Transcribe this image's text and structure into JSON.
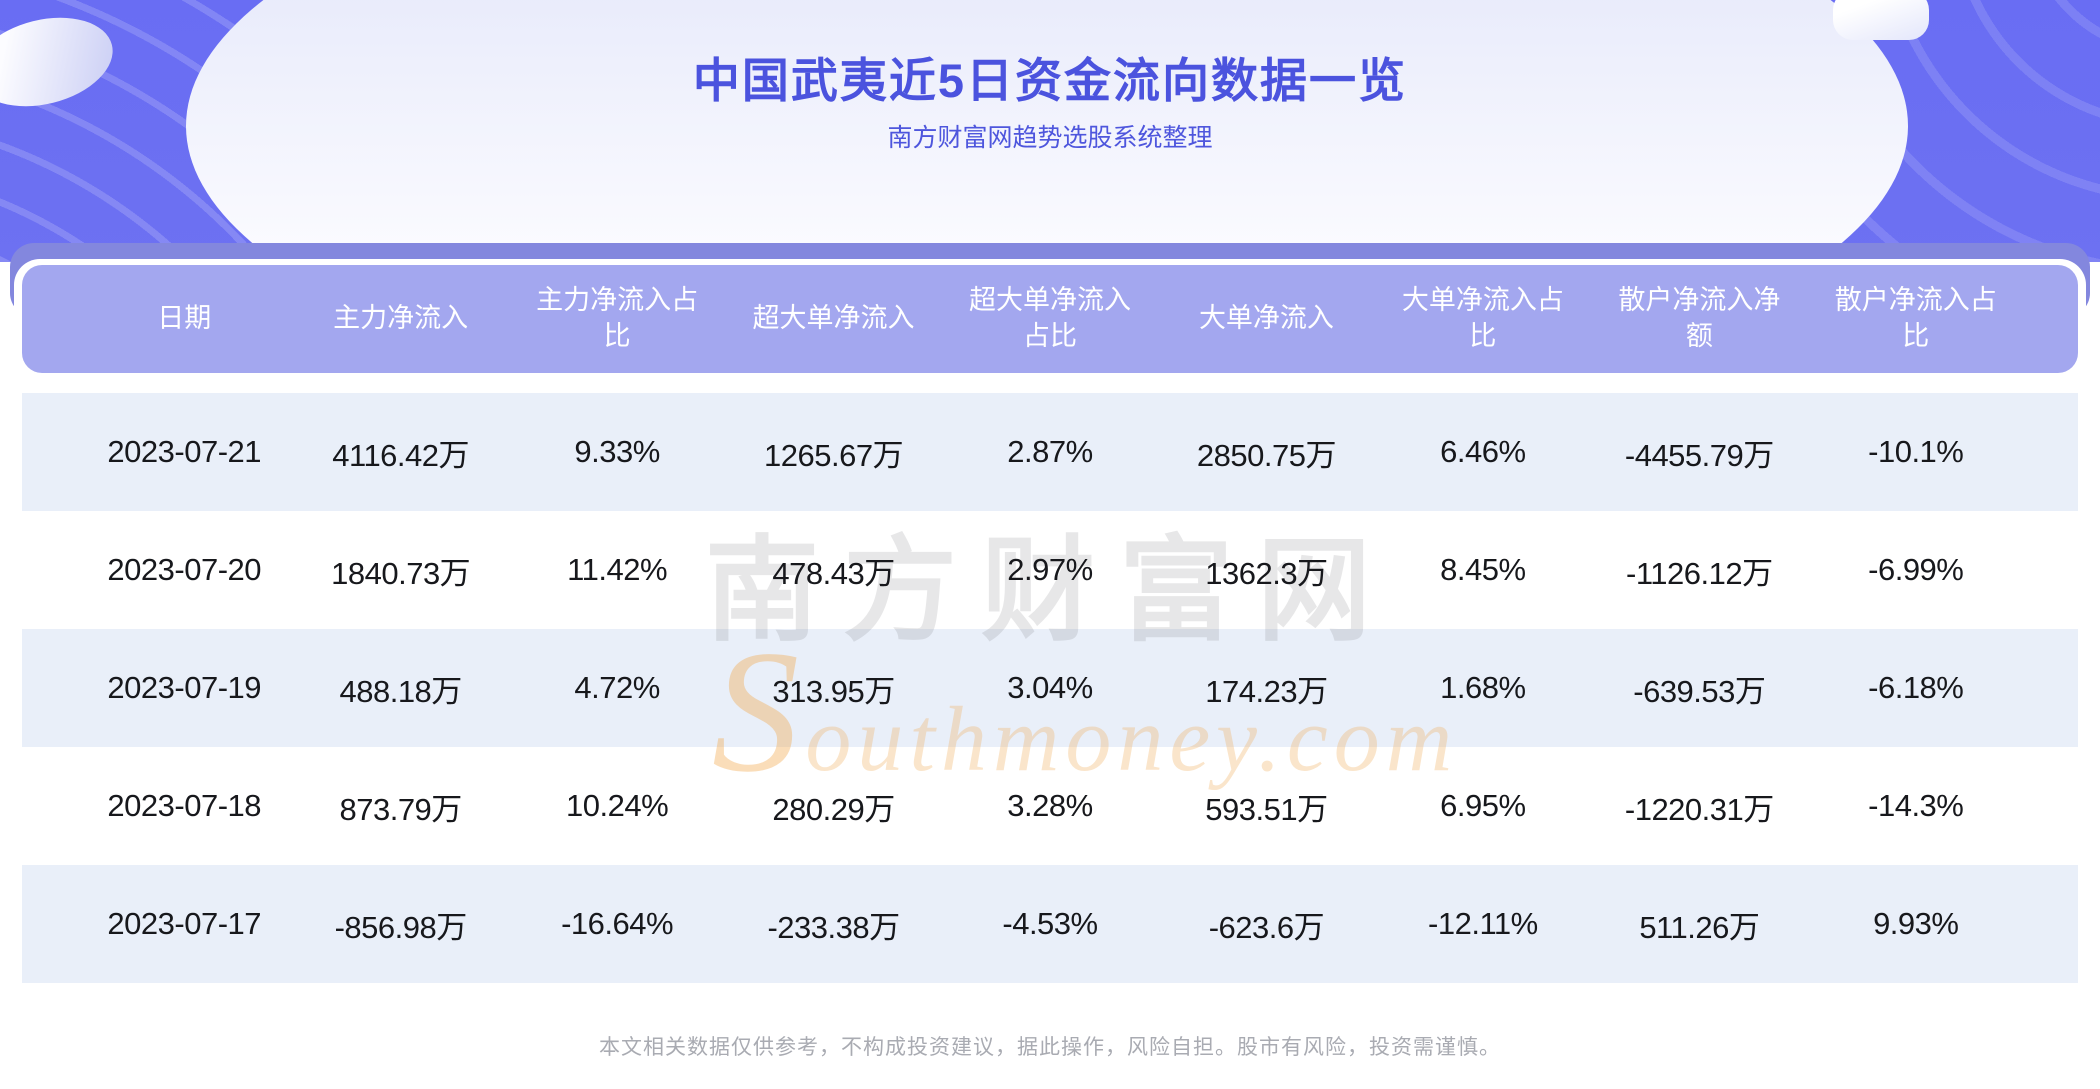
{
  "page": {
    "title": "中国武夷近5日资金流向数据一览",
    "subtitle": "南方财富网趋势选股系统整理",
    "disclaimer": "本文相关数据仅供参考，不构成投资建议，据此操作，风险自担。股市有风险，投资需谨慎。"
  },
  "watermark": {
    "cn": "南方财富网",
    "en": "Southmoney.com"
  },
  "chart_data": {
    "type": "table",
    "title": "中国武夷近5日资金流向数据一览",
    "subtitle": "南方财富网趋势选股系统整理",
    "columns": [
      "日期",
      "主力净流入",
      "主力净流入占比",
      "超大单净流入",
      "超大单净流入占比",
      "大单净流入",
      "大单净流入占比",
      "散户净流入净额",
      "散户净流入占比"
    ],
    "rows": [
      [
        "2023-07-21",
        "4116.42万",
        "9.33%",
        "1265.67万",
        "2.87%",
        "2850.75万",
        "6.46%",
        "-4455.79万",
        "-10.1%"
      ],
      [
        "2023-07-20",
        "1840.73万",
        "11.42%",
        "478.43万",
        "2.97%",
        "1362.3万",
        "8.45%",
        "-1126.12万",
        "-6.99%"
      ],
      [
        "2023-07-19",
        "488.18万",
        "4.72%",
        "313.95万",
        "3.04%",
        "174.23万",
        "1.68%",
        "-639.53万",
        "-6.18%"
      ],
      [
        "2023-07-18",
        "873.79万",
        "10.24%",
        "280.29万",
        "3.28%",
        "593.51万",
        "6.95%",
        "-1220.31万",
        "-14.3%"
      ],
      [
        "2023-07-17",
        "-856.98万",
        "-16.64%",
        "-233.38万",
        "-4.53%",
        "-623.6万",
        "-12.11%",
        "511.26万",
        "9.93%"
      ]
    ]
  },
  "colors": {
    "banner_purple": "#696df3",
    "title_indigo": "#4b53de",
    "strip_purple": "#8387de",
    "table_header_bg": "#a3a7ef",
    "row_alt_bg": "#e9eff9",
    "watermark_orange": "#f0ae5e",
    "text_dark": "#17181c",
    "footer_gray": "#a9abb2"
  }
}
